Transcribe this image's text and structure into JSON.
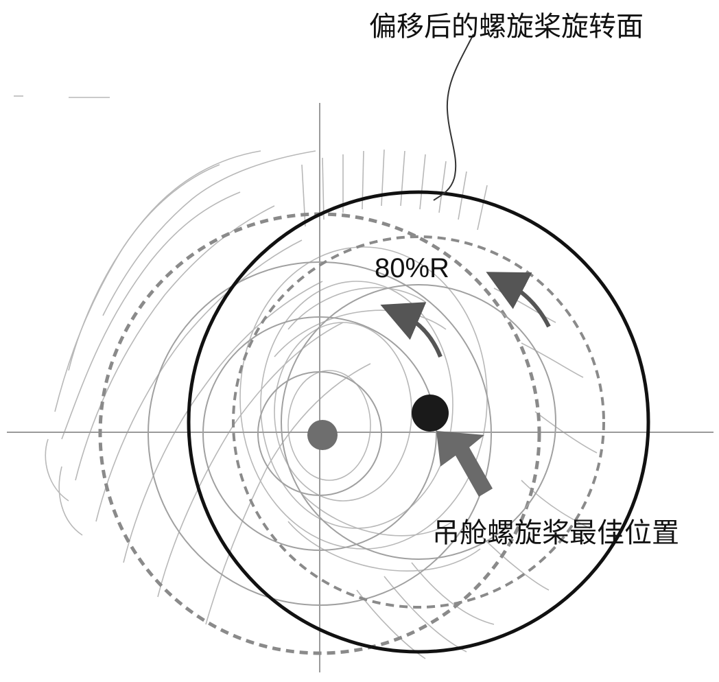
{
  "labels": {
    "offset_disk": "偏移后的螺旋桨旋转面",
    "radius_mark": "80%R",
    "best_position": "吊舱螺旋桨最佳位置"
  },
  "colors": {
    "background": "#ffffff",
    "main_circle": "#111111",
    "dashed_circle": "#8a8a8a",
    "wake_contours": "#b5b5b5",
    "axes": "#9a9a9a",
    "original_center": "#6e6e6e",
    "best_center": "#1a1a1a",
    "pointer_arrow": "#6a6a6a",
    "rotation_arrows": "#555555"
  },
  "icons": {
    "pointer": "thick-arrow-pointing-up-left",
    "rotation": "curved-arrow-counterclockwise"
  }
}
